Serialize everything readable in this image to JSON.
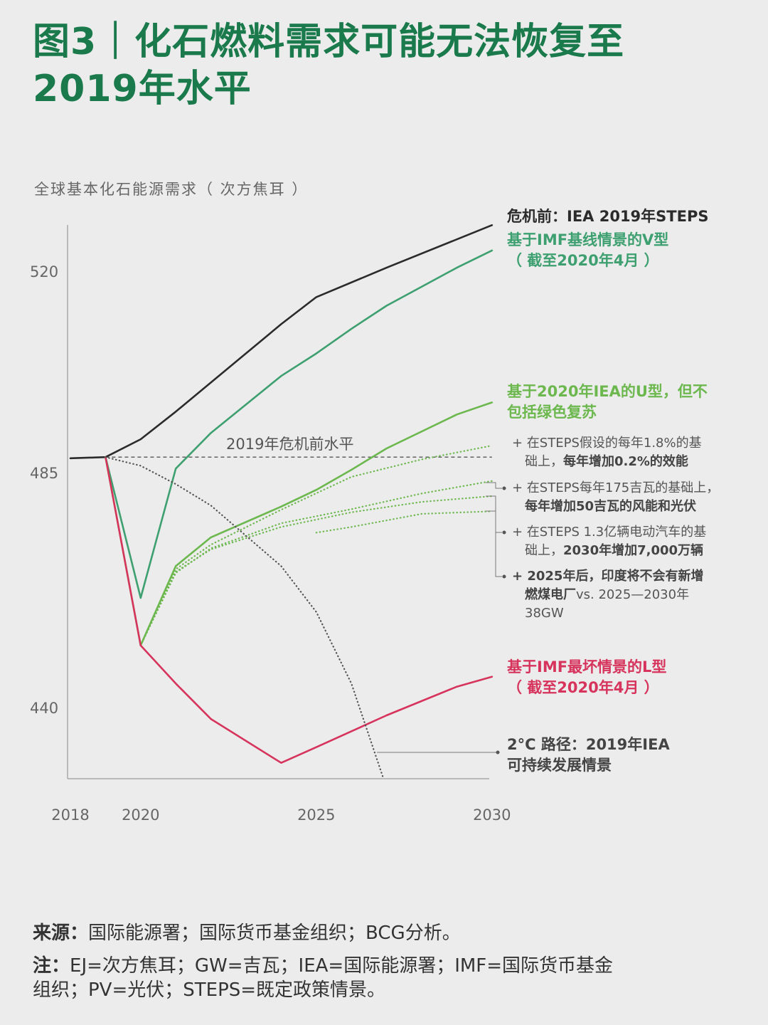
{
  "title_lines": [
    "图3｜化石燃料需求可能无法恢复至",
    "2019年水平"
  ],
  "colors": {
    "title": "#1a7a4c",
    "pre_crisis": "#2b2b2b",
    "v_shape": "#3ea070",
    "u_shape": "#6cb84e",
    "l_shape": "#d6345c",
    "two_degree": "#555555"
  },
  "chart_data": {
    "type": "line",
    "ylabel": "全球基本化石能源需求（ 次方焦耳 ）",
    "x_ticks": [
      "2018",
      "2020",
      "2025",
      "2030"
    ],
    "y_ticks": [
      520,
      485,
      440
    ],
    "xlim": [
      2018,
      2030
    ],
    "baseline": {
      "label": "2019年危机前水平",
      "value": 487.7,
      "x": [
        2019,
        2030
      ]
    },
    "series": [
      {
        "name": "危机前：IEA 2019年STEPS",
        "style": "solid",
        "color": "#2b2b2b",
        "x": [
          2018,
          2019,
          2020,
          2021,
          2024,
          2025,
          2027,
          2030
        ],
        "y": [
          487.5,
          487.7,
          490.8,
          495.6,
          510.8,
          515.5,
          520.6,
          528.0
        ]
      },
      {
        "name": "基于IMF基线情景的V型（截至2020年4月）",
        "style": "solid",
        "color": "#3ea070",
        "x": [
          2019,
          2020,
          2021,
          2022,
          2024,
          2025,
          2026,
          2027,
          2029,
          2030
        ],
        "y": [
          487.7,
          461.0,
          485.7,
          491.9,
          501.8,
          505.7,
          510.0,
          514.0,
          520.6,
          523.6
        ]
      },
      {
        "name": "基于2020年IEA的U型，但不包括绿色复苏",
        "style": "solid",
        "color": "#6cb84e",
        "x": [
          2019,
          2020,
          2021,
          2022,
          2024,
          2025,
          2026,
          2027,
          2029,
          2030
        ],
        "y": [
          487.7,
          451.9,
          467.1,
          472.6,
          478.5,
          481.7,
          485.5,
          489.2,
          495.1,
          497.2
        ]
      },
      {
        "name": "+ 在STEPS假设的每年1.8%的基础上，每年增加0.2%的效能",
        "style": "dotted",
        "color": "#6cb84e",
        "x": [
          2020,
          2021,
          2022,
          2024,
          2026,
          2028,
          2030
        ],
        "y": [
          451.9,
          466.5,
          471.2,
          477.9,
          484.2,
          487.3,
          489.7
        ]
      },
      {
        "name": "+ 在STEPS每年175吉瓦的基础上，每年增加50吉瓦的风能和光伏",
        "style": "dotted",
        "color": "#6cb84e",
        "x": [
          2020,
          2021,
          2022,
          2024,
          2026,
          2028,
          2030
        ],
        "y": [
          451.9,
          465.8,
          470.5,
          475.3,
          478.0,
          481.0,
          483.4
        ]
      },
      {
        "name": "+ 在STEPS 1.3亿辆电动汽车的基础上，2030年增加7,000万辆",
        "style": "dotted",
        "color": "#6cb84e",
        "x": [
          2020,
          2021,
          2022,
          2024,
          2026,
          2028,
          2030
        ],
        "y": [
          451.9,
          466.0,
          470.3,
          474.6,
          477.4,
          479.4,
          480.5
        ]
      },
      {
        "name": "+ 2025年后，印度将不会有新增燃煤电厂vs. 2025—2030年38GW",
        "style": "dotted",
        "color": "#6cb84e",
        "x": [
          2025,
          2026,
          2028,
          2030
        ],
        "y": [
          473.5,
          474.6,
          477.1,
          477.6
        ]
      },
      {
        "name": "基于IMF最坏情景的L型（截至2020年4月）",
        "style": "solid",
        "color": "#d6345c",
        "x": [
          2019,
          2020,
          2021,
          2022,
          2024,
          2025,
          2027,
          2029,
          2030
        ],
        "y": [
          487.7,
          451.9,
          444.6,
          437.8,
          429.4,
          432.4,
          438.5,
          444.0,
          445.9
        ]
      },
      {
        "name": "2°C 路径：2019年IEA可持续发展情景",
        "style": "dotted",
        "color": "#555555",
        "x": [
          2019,
          2020,
          2021,
          2022,
          2024,
          2025,
          2026,
          2026.9
        ],
        "y": [
          487.7,
          486.2,
          482.8,
          478.7,
          467.1,
          458.3,
          444.6,
          426.6
        ]
      }
    ]
  },
  "labels": {
    "pre_crisis": "危机前：IEA 2019年STEPS",
    "v_line1": "基于IMF基线情景的V型",
    "v_line2": "（ 截至2020年4月 ）",
    "u_line1": "基于2020年IEA的U型，但不",
    "u_line2": "包括绿色复苏",
    "d1_a": "+ 在STEPS假设的每年1.8%的基",
    "d1_b": "础上，",
    "d1_c": "每年增加0.2%的效能",
    "d2_a": "+ 在STEPS每年175吉瓦的基础上，",
    "d2_b": "每年增加50吉瓦的风能和光伏",
    "d3_a": "+ 在STEPS 1.3亿辆电动汽车的基",
    "d3_b": "础上，",
    "d3_c": "2030年增加7,000万辆",
    "d4_a": "+ 2025年后，印度将不会有新增",
    "d4_b": "燃煤电厂",
    "d4_c": "vs. 2025—2030年",
    "d4_d": "38GW",
    "l_line1": "基于IMF最坏情景的L型",
    "l_line2": "（ 截至2020年4月 ）",
    "t_line1": "2°C 路径：2019年IEA",
    "t_line2": "可持续发展情景"
  },
  "footer": {
    "source_label": "来源：",
    "source_text": "国际能源署；国际货币基金组织；BCG分析。",
    "note_label": "注：",
    "note_text1": "EJ=次方焦耳；GW=吉瓦；IEA=国际能源署；IMF=国际货币基金",
    "note_text2": "组织；PV=光伏；STEPS=既定政策情景。"
  }
}
